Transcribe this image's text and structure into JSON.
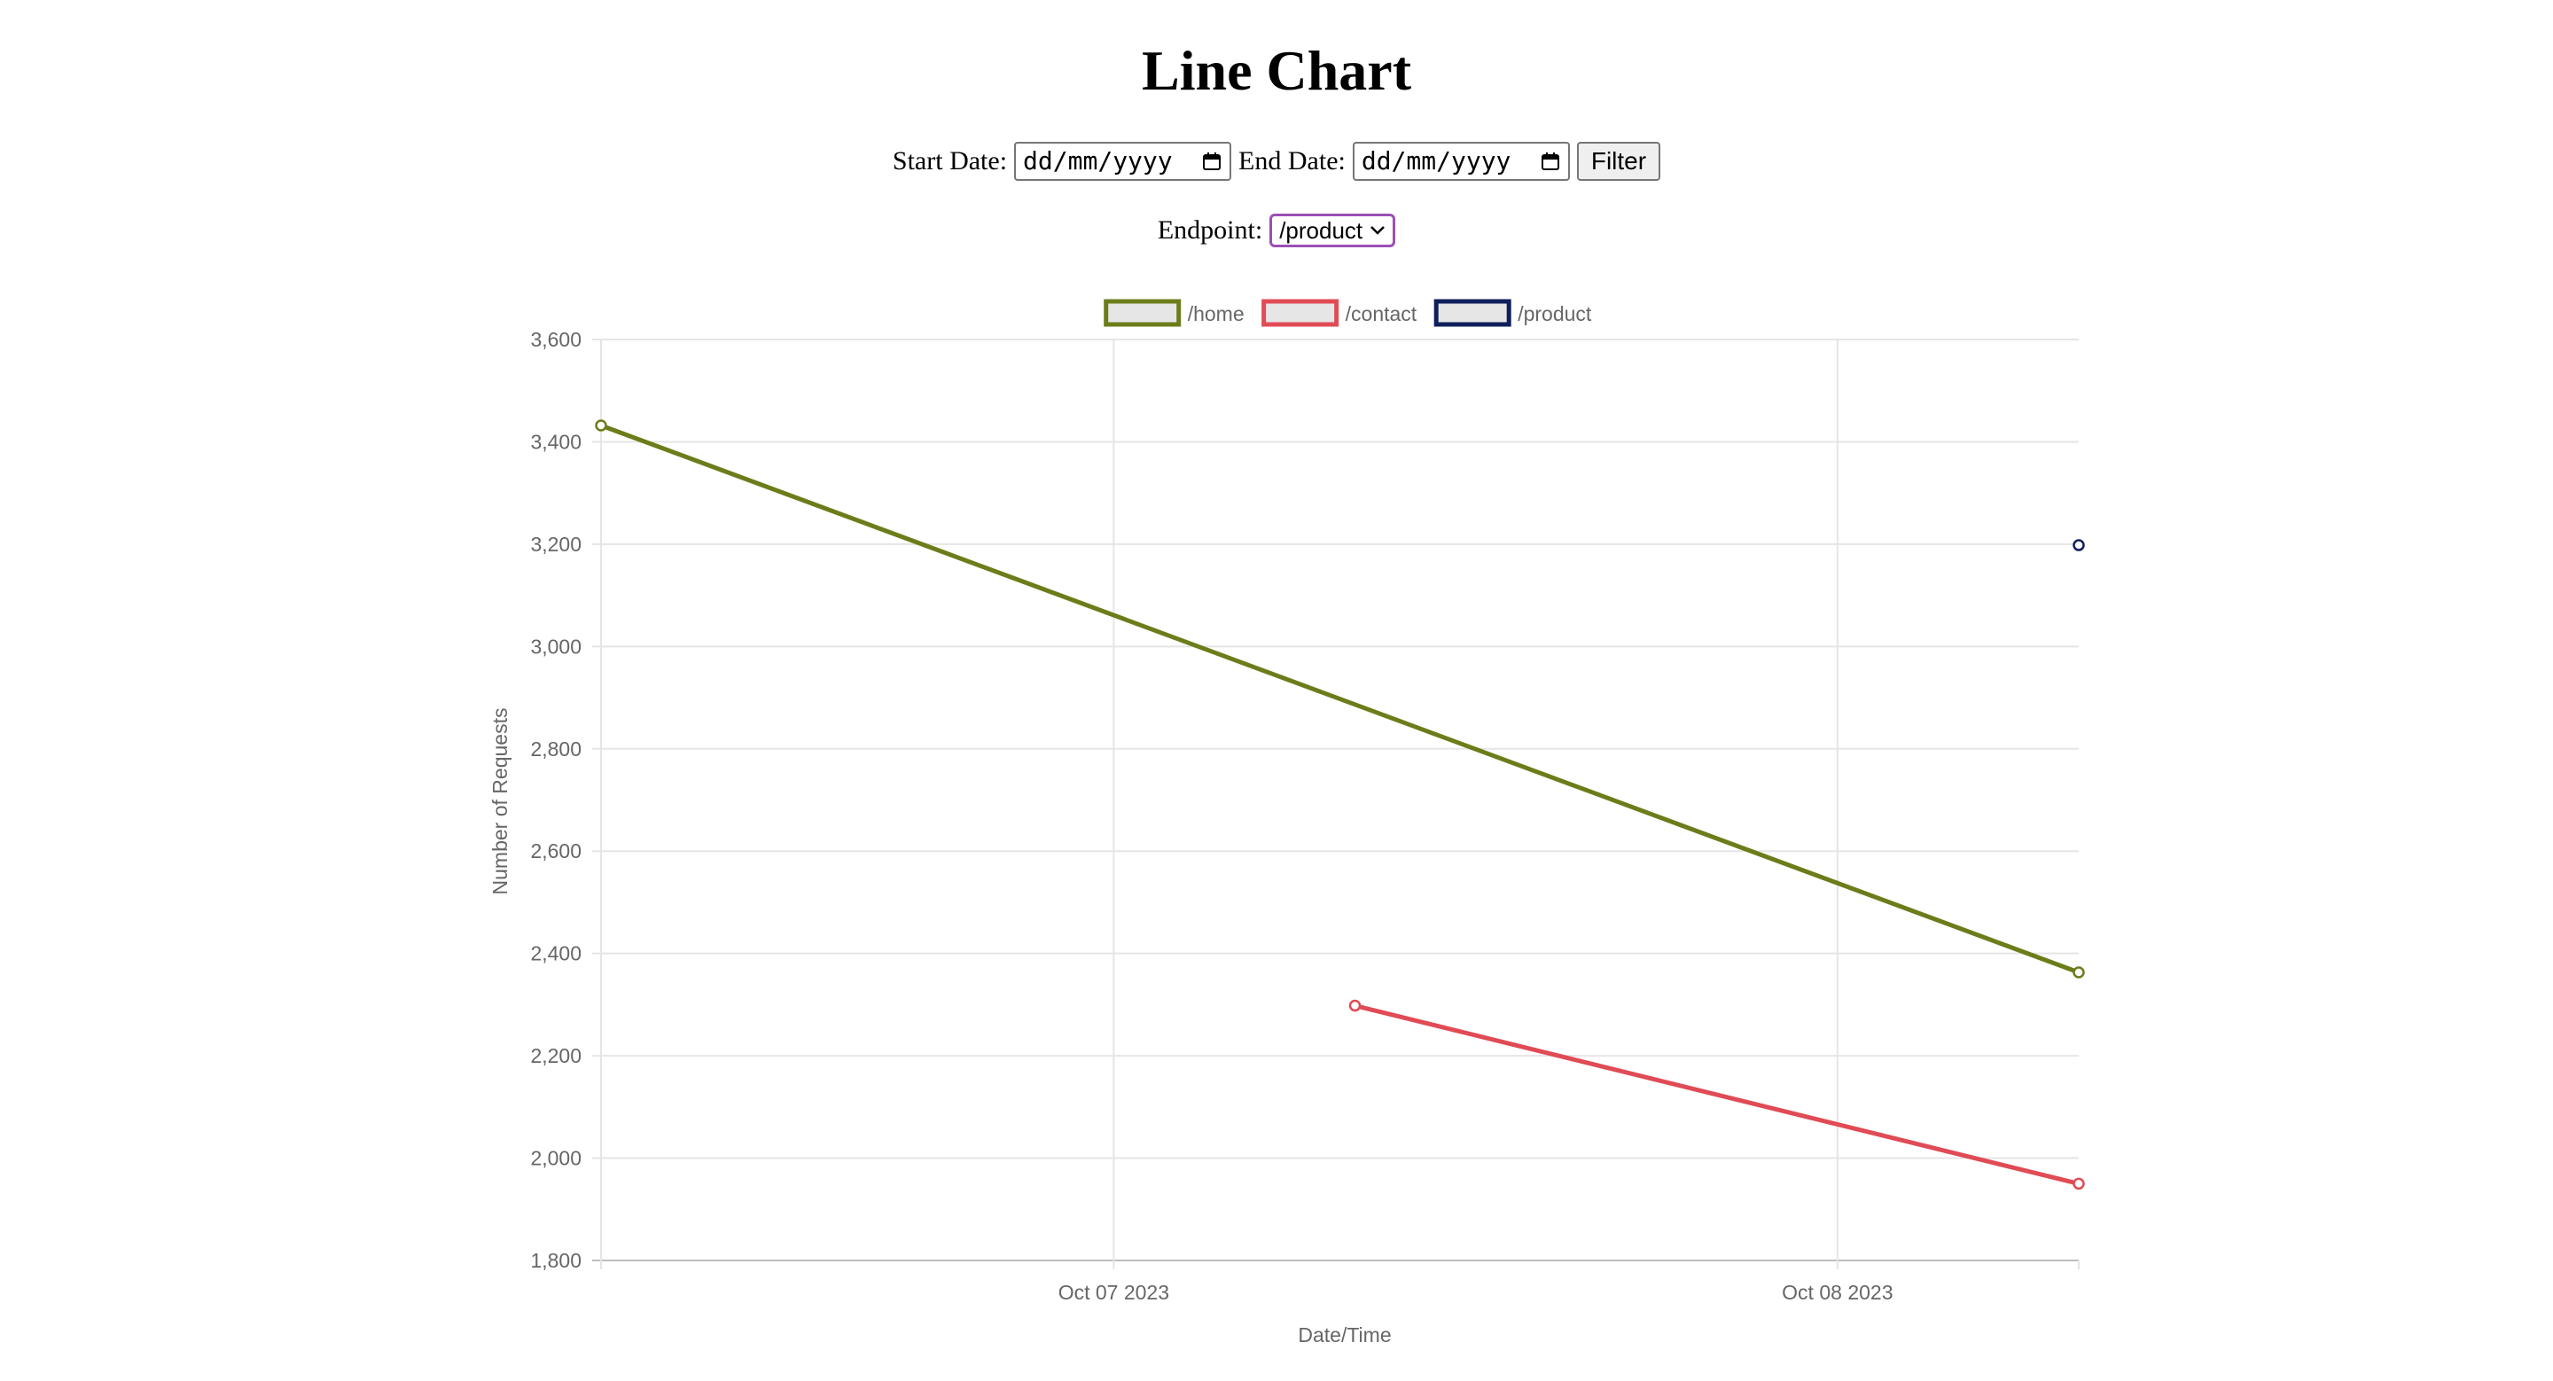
{
  "page": {
    "title": "Line Chart"
  },
  "filters": {
    "start_label": "Start Date:",
    "start_value": "dd/mm/yyyy",
    "end_label": "End Date:",
    "end_value": "dd/mm/yyyy",
    "filter_button": "Filter",
    "endpoint_label": "Endpoint:",
    "endpoint_selected": "/product"
  },
  "icons": {
    "date_picker": "calendar-icon",
    "select_arrow": "chevron-down-icon"
  },
  "chart_data": {
    "type": "line",
    "title": "",
    "xlabel": "Date/Time",
    "ylabel": "Number of Requests",
    "x_axis_type": "time",
    "xlim": [
      "2023-10-06 07:00",
      "2023-10-08 08:00"
    ],
    "ylim": [
      1800,
      3600
    ],
    "y_ticks": [
      "1,800",
      "2,000",
      "2,200",
      "2,400",
      "2,600",
      "2,800",
      "3,000",
      "3,200",
      "3,400",
      "3,600"
    ],
    "y_tick_values": [
      1800,
      2000,
      2200,
      2400,
      2600,
      2800,
      3000,
      3200,
      3400,
      3600
    ],
    "x_ticks": [
      "Oct 07 2023",
      "Oct 08 2023"
    ],
    "x_tick_values": [
      "2023-10-07 00:00",
      "2023-10-08 00:00"
    ],
    "grid": true,
    "legend_position": "top",
    "series": [
      {
        "name": "/home",
        "color": "#6b7d1a",
        "points": [
          {
            "x": "2023-10-06 07:00",
            "y": 3432
          },
          {
            "x": "2023-10-08 08:00",
            "y": 2363
          }
        ]
      },
      {
        "name": "/contact",
        "color": "#e04b55",
        "points": [
          {
            "x": "2023-10-07 08:00",
            "y": 2298
          },
          {
            "x": "2023-10-08 08:00",
            "y": 1950
          }
        ]
      },
      {
        "name": "/product",
        "color": "#0f1f5c",
        "points": [
          {
            "x": "2023-10-08 08:00",
            "y": 3198
          }
        ]
      }
    ]
  }
}
